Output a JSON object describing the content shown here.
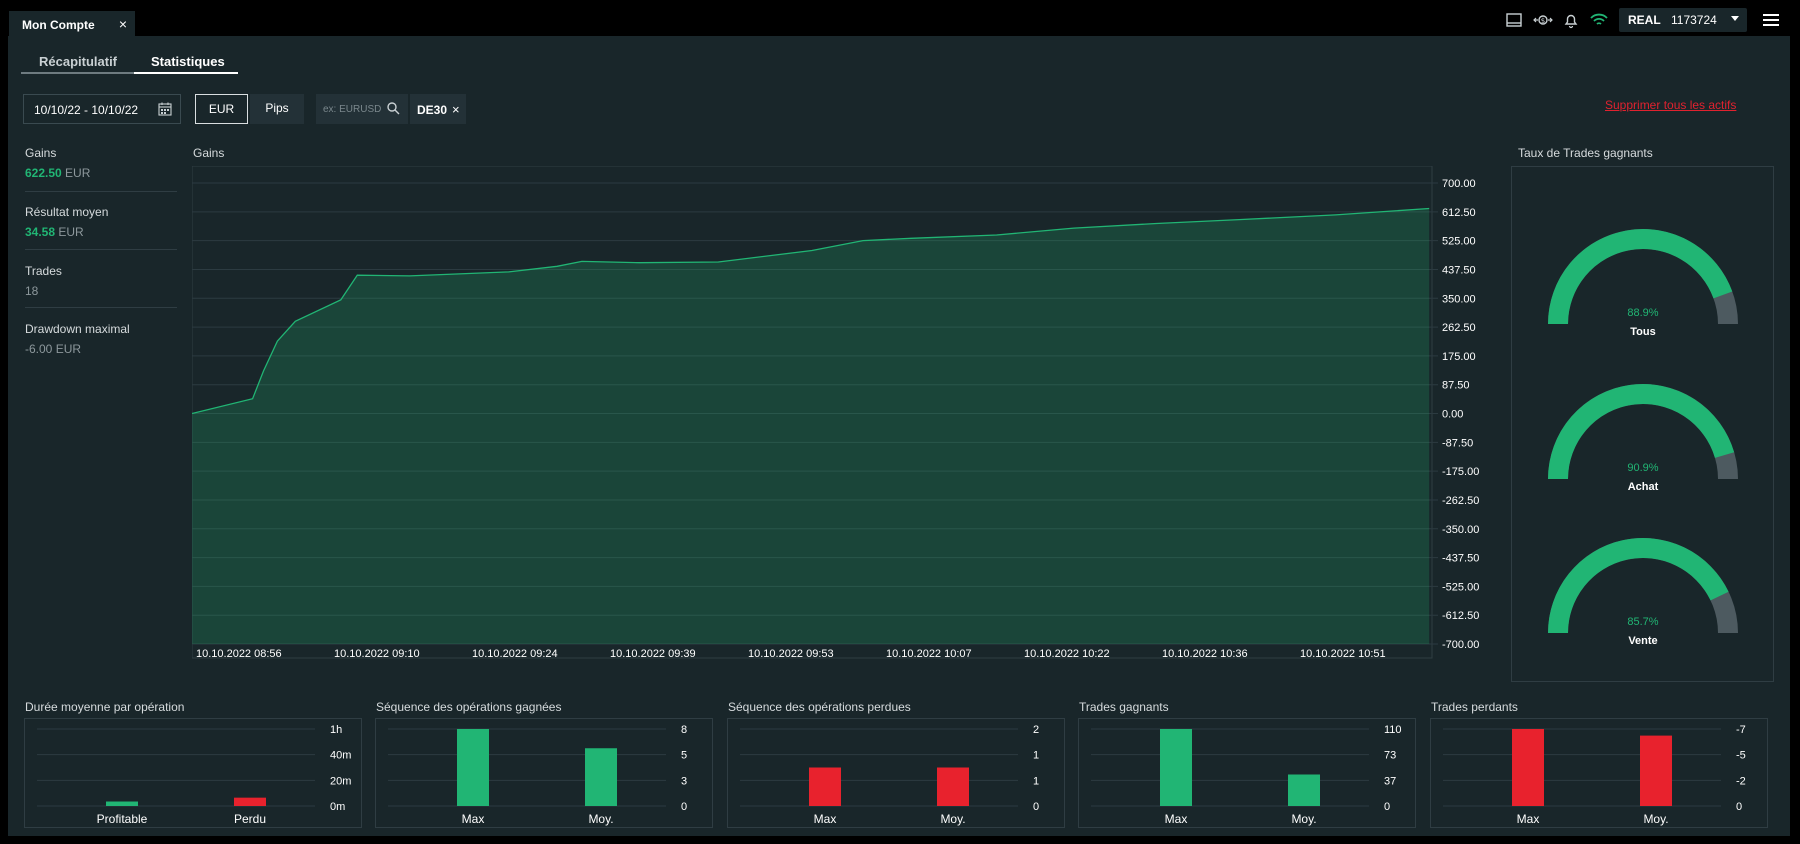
{
  "tab": {
    "title": "Mon Compte",
    "close": "×"
  },
  "account": {
    "type": "REAL",
    "number": "1173724"
  },
  "subtabs": [
    {
      "label": "Récapitulatif"
    },
    {
      "label": "Statistiques"
    }
  ],
  "filters": {
    "date_range": "10/10/22 - 10/10/22",
    "unit_eur": "EUR",
    "unit_pips": "Pips",
    "search_placeholder": "ex: EURUSD",
    "chip": "DE30",
    "chip_close": "×",
    "delete_all": "Supprimer tous les actifs"
  },
  "stats": [
    {
      "label": "Gains",
      "value": "622.50",
      "unit": "EUR",
      "color": "#21b574"
    },
    {
      "label": "Résultat moyen",
      "value": "34.58",
      "unit": "EUR",
      "color": "#21b574"
    },
    {
      "label": "Trades",
      "value": "18",
      "unit": "",
      "color": "#8d989c"
    },
    {
      "label": "Drawdown maximal",
      "value": "-6.00",
      "unit": "EUR",
      "color": "#8d989c"
    }
  ],
  "colors": {
    "green": "#21b574",
    "red": "#e8222d",
    "grey": "#4d5a60",
    "bg": "#19262a"
  },
  "chart_data": [
    {
      "type": "area",
      "title": "Gains",
      "x_labels": [
        "10.10.2022 08:56",
        "10.10.2022 09:10",
        "10.10.2022 09:24",
        "10.10.2022 09:39",
        "10.10.2022 09:53",
        "10.10.2022 10:07",
        "10.10.2022 10:22",
        "10.10.2022 10:36",
        "10.10.2022 10:51"
      ],
      "y_ticks": [
        "700.00",
        "612.50",
        "525.00",
        "437.50",
        "350.00",
        "262.50",
        "175.00",
        "87.50",
        "0.00",
        "-87.50",
        "-175.00",
        "-262.50",
        "-350.00",
        "-437.50",
        "-525.00",
        "-612.50",
        "-700.00"
      ],
      "ylim": [
        -700,
        700
      ],
      "xlim": [
        0,
        9
      ],
      "grid": true,
      "x": [
        0,
        0.44,
        0.52,
        0.62,
        0.75,
        1.08,
        1.2,
        1.58,
        2.3,
        2.65,
        2.83,
        3.25,
        3.82,
        4.5,
        4.87,
        5.22,
        5.84,
        6.4,
        7.0,
        7.6,
        8.3,
        8.98
      ],
      "y": [
        0,
        45,
        130,
        220,
        280,
        345,
        420,
        418,
        430,
        447,
        462,
        458,
        460,
        495,
        525,
        532,
        542,
        563,
        577,
        589,
        603,
        622.5
      ]
    },
    {
      "type": "gauge",
      "title": "Taux de Trades gagnants",
      "series": [
        {
          "name": "Tous",
          "value": 88.9,
          "label": "88.9%"
        },
        {
          "name": "Achat",
          "value": 90.9,
          "label": "90.9%"
        },
        {
          "name": "Vente",
          "value": 85.7,
          "label": "85.7%"
        }
      ]
    },
    {
      "type": "bar",
      "title": "Durée moyenne par opération",
      "categories": [
        "Profitable",
        "Perdu"
      ],
      "values": [
        3.5,
        6.5
      ],
      "colors": [
        "#21b574",
        "#e8222d"
      ],
      "ylim": [
        0,
        60
      ],
      "y_ticks": [
        "1h",
        "40m",
        "20m",
        "0m"
      ]
    },
    {
      "type": "bar",
      "title": "Séquence des opérations gagnées",
      "categories": [
        "Max",
        "Moy."
      ],
      "values": [
        8,
        6
      ],
      "colors": [
        "#21b574",
        "#21b574"
      ],
      "ylim": [
        0,
        8
      ],
      "y_ticks": [
        "8",
        "5",
        "3",
        "0"
      ]
    },
    {
      "type": "bar",
      "title": "Séquence des opérations perdues",
      "categories": [
        "Max",
        "Moy."
      ],
      "values": [
        1,
        1
      ],
      "colors": [
        "#e8222d",
        "#e8222d"
      ],
      "ylim": [
        0,
        2
      ],
      "y_ticks": [
        "2",
        "1",
        "1",
        "0"
      ]
    },
    {
      "type": "bar",
      "title": "Trades gagnants",
      "categories": [
        "Max",
        "Moy."
      ],
      "values": [
        110,
        45
      ],
      "colors": [
        "#21b574",
        "#21b574"
      ],
      "ylim": [
        0,
        110
      ],
      "y_ticks": [
        "110",
        "73",
        "37",
        "0"
      ]
    },
    {
      "type": "bar",
      "title": "Trades perdants",
      "categories": [
        "Max",
        "Moy."
      ],
      "values": [
        -7,
        -6.4
      ],
      "colors": [
        "#e8222d",
        "#e8222d"
      ],
      "ylim": [
        0,
        -7
      ],
      "y_ticks": [
        "-7",
        "-5",
        "-2",
        "0"
      ]
    }
  ]
}
